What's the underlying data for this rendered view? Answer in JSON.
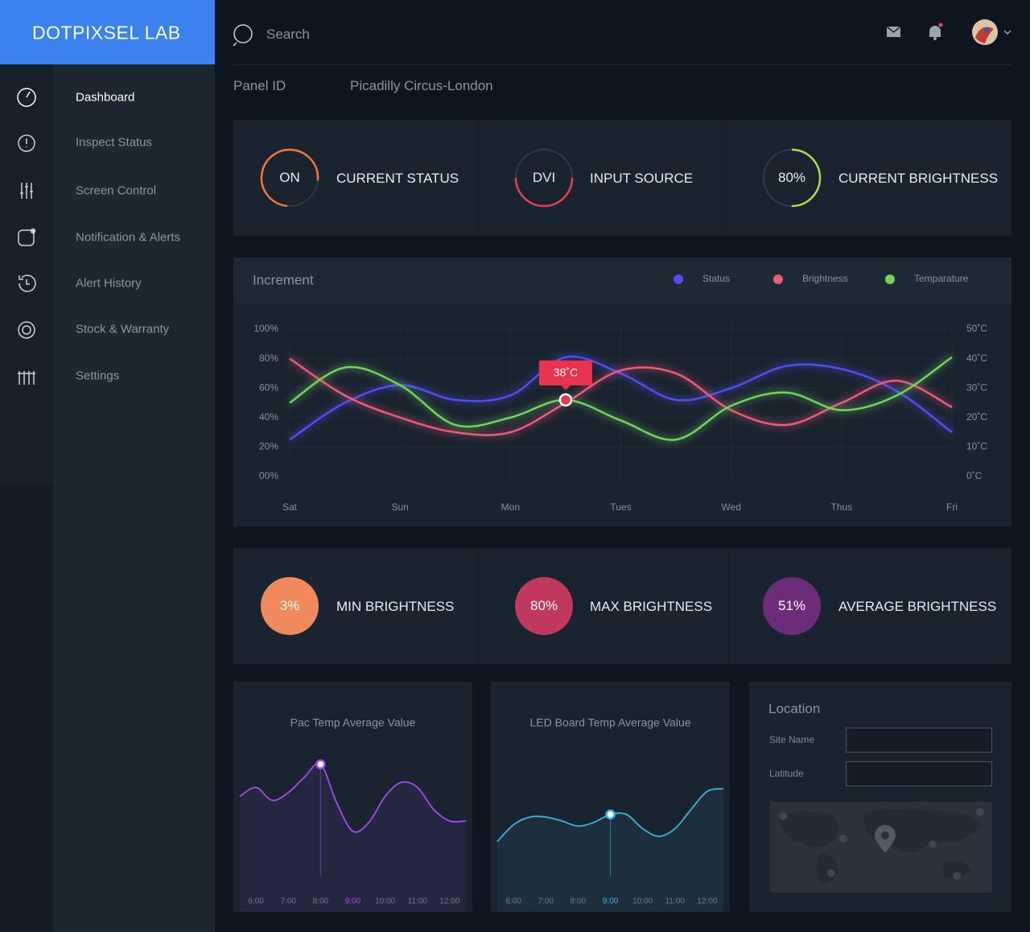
{
  "brand": "DOTPIXSEL LAB",
  "search": {
    "placeholder": "Search"
  },
  "nav": [
    "Dashboard",
    "Inspect Status",
    "Screen Control",
    "Notification & Alerts",
    "Alert History",
    "Stock & Warranty",
    "Settings"
  ],
  "panel": {
    "label": "Panel ID",
    "value": "Picadilly Circus-London"
  },
  "status_cards": [
    {
      "value": "ON",
      "label": "CURRENT STATUS"
    },
    {
      "value": "DVI",
      "label": "INPUT SOURCE"
    },
    {
      "value": "80%",
      "label": "CURRENT BRIGHTNESS"
    }
  ],
  "brightness_stats": [
    {
      "value": "3%",
      "label": "MIN BRIGHTNESS",
      "color": "#f08a5d"
    },
    {
      "value": "80%",
      "label": "MAX BRIGHTNESS",
      "color": "#c0395c"
    },
    {
      "value": "51%",
      "label": "AVERAGE BRIGHTNESS",
      "color": "#6b2d77"
    }
  ],
  "chart_data": [
    {
      "type": "line",
      "title": "Increment",
      "categories": [
        "Sat",
        null,
        "Sun",
        null,
        "Mon",
        null,
        "Tues",
        null,
        "Wed",
        null,
        "Thus",
        null,
        "Fri"
      ],
      "series": [
        {
          "name": "Status",
          "color": "#4f4ff0",
          "values": [
            25,
            50,
            62,
            52,
            55,
            81,
            70,
            52,
            60,
            75,
            73,
            58,
            30
          ]
        },
        {
          "name": "Brightness",
          "color": "#ef5a78",
          "values": [
            80,
            55,
            40,
            30,
            30,
            50,
            72,
            70,
            45,
            35,
            50,
            65,
            47
          ]
        },
        {
          "name": "Temparature",
          "color": "#6fd65a",
          "values": [
            50,
            74,
            62,
            35,
            40,
            52,
            38,
            25,
            48,
            57,
            45,
            55,
            81
          ]
        }
      ],
      "ylim": [
        0,
        100
      ],
      "yticks": [
        {
          "value": 100,
          "label": "100%"
        },
        {
          "value": 80,
          "label": "80%"
        },
        {
          "value": 60,
          "label": "60%"
        },
        {
          "value": 40,
          "label": "40%"
        },
        {
          "value": 20,
          "label": "20%"
        },
        {
          "value": 0,
          "label": "00%"
        }
      ],
      "y2lim": [
        0,
        50
      ],
      "y2ticks": [
        {
          "value": 50,
          "label": "50˚C"
        },
        {
          "value": 40,
          "label": "40˚C"
        },
        {
          "value": 30,
          "label": "30˚C"
        },
        {
          "value": 20,
          "label": "20˚C"
        },
        {
          "value": 10,
          "label": "10˚C"
        },
        {
          "value": 0,
          "label": "0˚C"
        }
      ],
      "grid": true,
      "legend": "top-right",
      "annotations": [
        {
          "text": "38˚C"
        }
      ]
    },
    {
      "type": "area",
      "title": "Pac Temp Average Value",
      "color": "#a64bf0",
      "x": [
        5.5,
        6,
        6.5,
        7,
        7.5,
        8,
        8.5,
        9,
        9.5,
        10,
        10.5,
        11,
        11.5,
        12,
        12.5
      ],
      "values": [
        69,
        76,
        66,
        72,
        84,
        94,
        64,
        42,
        49,
        69,
        80,
        76,
        59,
        50,
        50
      ],
      "xlim": [
        5.3,
        12.7
      ],
      "xticks": [
        {
          "value": 6,
          "label": "6:00"
        },
        {
          "value": 7,
          "label": "7:00"
        },
        {
          "value": 8,
          "label": "8:00"
        },
        {
          "value": 9,
          "label": "9:00"
        },
        {
          "value": 10,
          "label": "10:00"
        },
        {
          "value": 11,
          "label": "11:00"
        },
        {
          "value": 12,
          "label": "12:00"
        }
      ],
      "ylim": [
        0,
        100
      ]
    },
    {
      "type": "area",
      "title": "LED Board Temp Average Value",
      "color": "#3fb3e0",
      "x": [
        5.5,
        6,
        6.5,
        7,
        7.5,
        8,
        8.5,
        9,
        9.5,
        10,
        10.5,
        11,
        11.5,
        12,
        12.5
      ],
      "values": [
        34,
        47,
        53,
        53,
        50,
        46,
        49,
        55,
        55,
        44,
        38,
        44,
        59,
        73,
        75
      ],
      "xlim": [
        5.3,
        12.7
      ],
      "xticks": [
        {
          "value": 6,
          "label": "6:00"
        },
        {
          "value": 7,
          "label": "7:00"
        },
        {
          "value": 8,
          "label": "8:00"
        },
        {
          "value": 9,
          "label": "9:00"
        },
        {
          "value": 10,
          "label": "10:00"
        },
        {
          "value": 11,
          "label": "11:00"
        },
        {
          "value": 12,
          "label": "12:00"
        }
      ],
      "ylim": [
        0,
        100
      ]
    }
  ],
  "location": {
    "title": "Location",
    "fields": [
      "Site Name",
      "Latitude"
    ]
  }
}
